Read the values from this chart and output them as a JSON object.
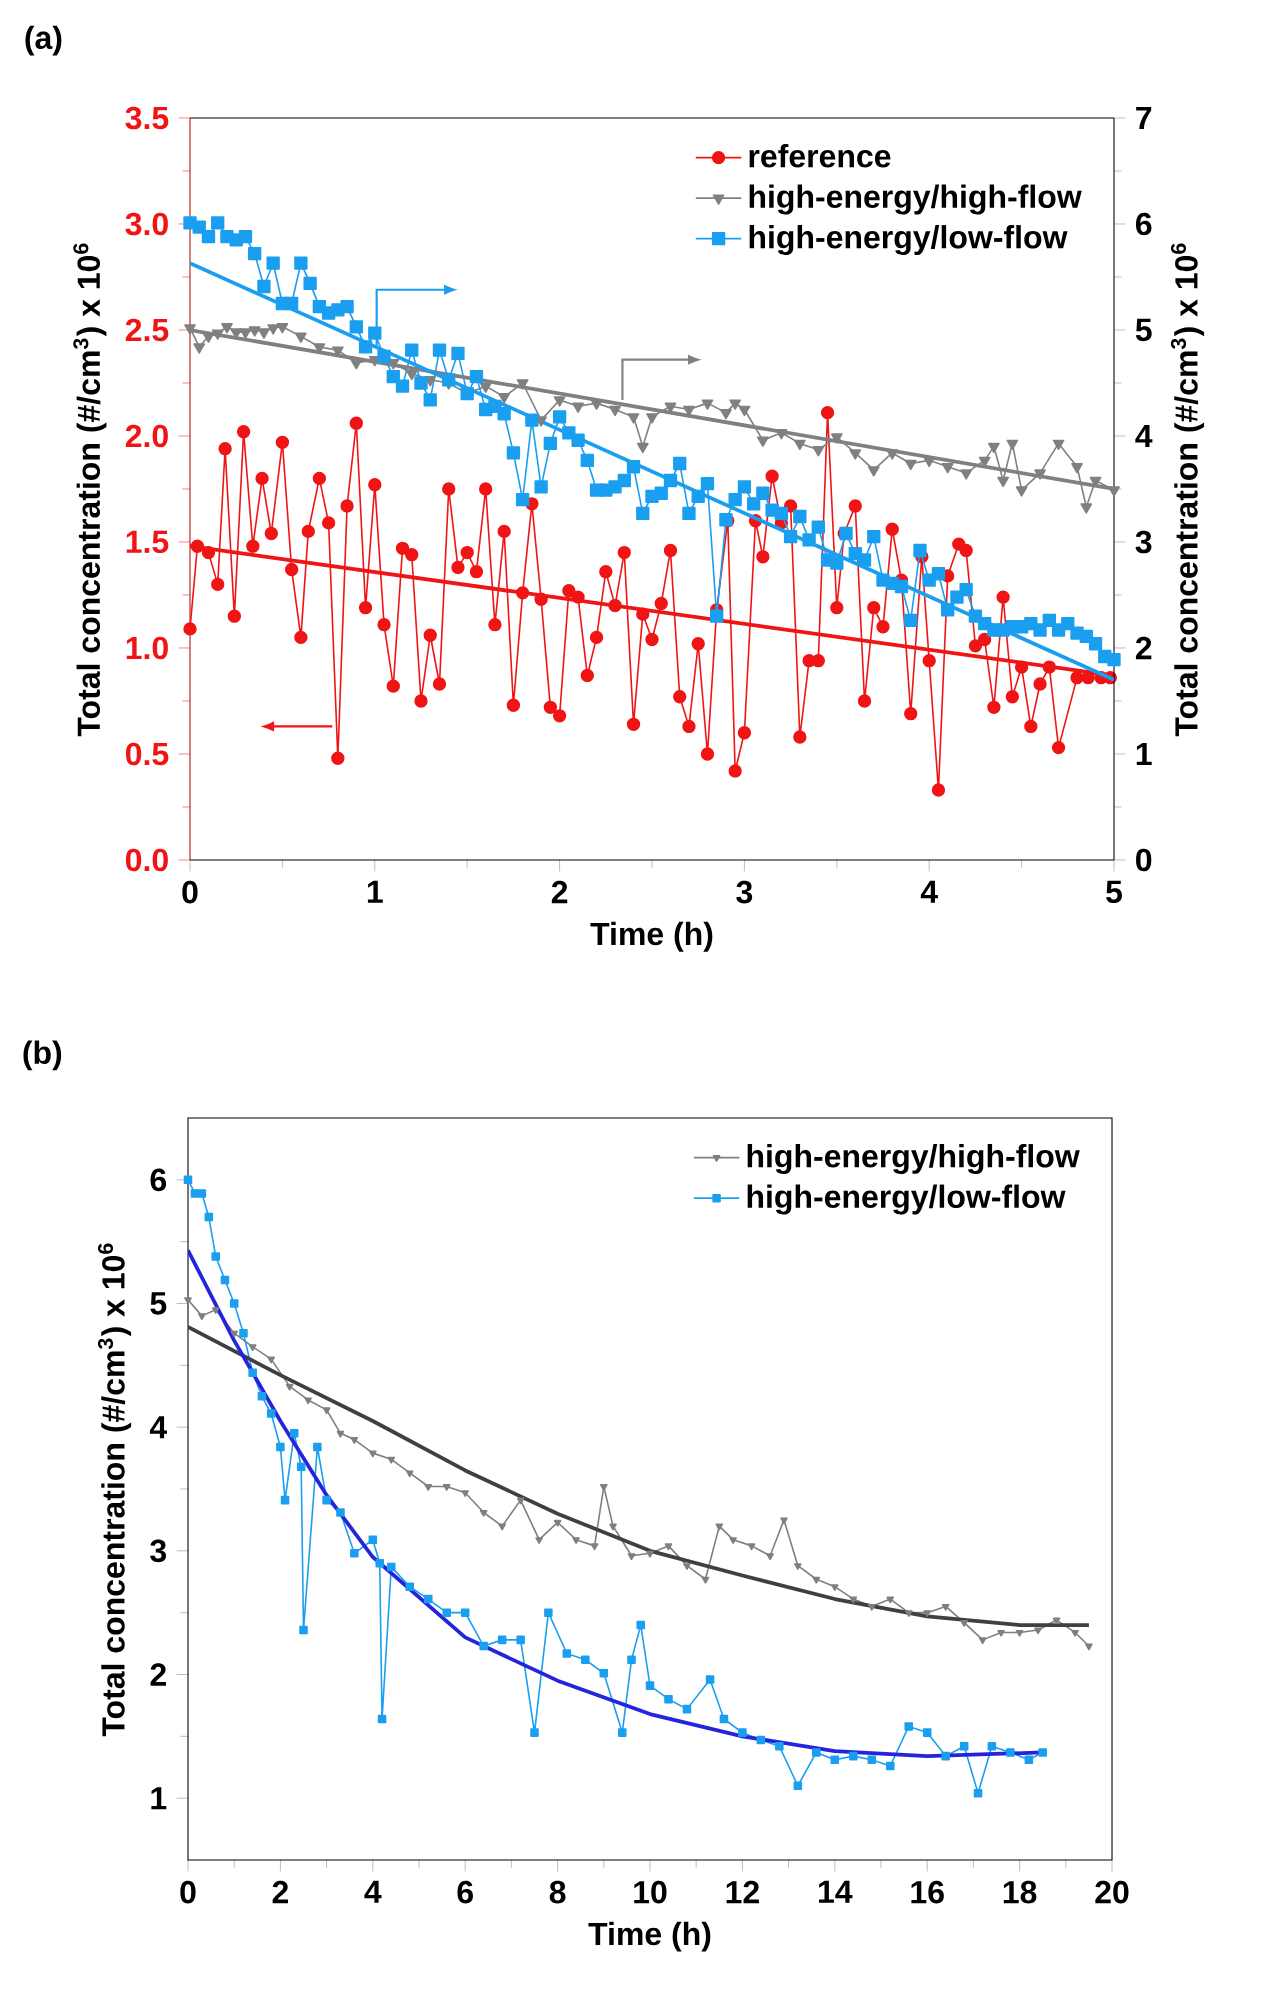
{
  "chart_data": [
    {
      "type": "line",
      "title": "(a)",
      "xlabel": "Time (h)",
      "ylabel": "Total concentration (#/cm$^{3}$) x 10$^{6}$",
      "y2label": "Total concentration (#/cm$^{3}$) x 10$^{6}$",
      "xlim": [
        0,
        5
      ],
      "xticks": [
        0,
        1,
        2,
        3,
        4,
        5
      ],
      "ylim": [
        0,
        3.5
      ],
      "yticks": [
        {
          "value": 0,
          "label": "0.0"
        },
        0.5,
        {
          "value": 1,
          "label": "1.0"
        },
        1.5,
        {
          "value": 2,
          "label": "2.0"
        },
        2.5,
        {
          "value": 3,
          "label": "3.0"
        },
        3.5
      ],
      "y2lim": [
        0,
        7
      ],
      "y2ticks": [
        0,
        1,
        2,
        3,
        4,
        5,
        6,
        7
      ],
      "legend": "top right",
      "series": [
        {
          "name": "reference",
          "color": "#f01414",
          "marker": "circle",
          "x": [
            0,
            0.04,
            0.1,
            0.15,
            0.19,
            0.24,
            0.29,
            0.34,
            0.39,
            0.44,
            0.5,
            0.55,
            0.6,
            0.64,
            0.7,
            0.75,
            0.8,
            0.85,
            0.9,
            0.95,
            1.0,
            1.05,
            1.1,
            1.15,
            1.2,
            1.25,
            1.3,
            1.35,
            1.4,
            1.45,
            1.5,
            1.55,
            1.6,
            1.65,
            1.7,
            1.75,
            1.8,
            1.85,
            1.9,
            1.95,
            2.0,
            2.05,
            2.1,
            2.15,
            2.2,
            2.25,
            2.3,
            2.35,
            2.4,
            2.45,
            2.5,
            2.55,
            2.6,
            2.65,
            2.7,
            2.75,
            2.8,
            2.85,
            2.91,
            2.95,
            3.0,
            3.06,
            3.1,
            3.15,
            3.2,
            3.25,
            3.3,
            3.35,
            3.4,
            3.45,
            3.5,
            3.54,
            3.6,
            3.65,
            3.7,
            3.75,
            3.8,
            3.85,
            3.9,
            3.96,
            4.0,
            4.05,
            4.1,
            4.16,
            4.2,
            4.25,
            4.3,
            4.35,
            4.4,
            4.45,
            4.5,
            4.55,
            4.6,
            4.65,
            4.7,
            4.8,
            4.86,
            4.93,
            4.98
          ],
          "values": [
            1.09,
            1.48,
            1.45,
            1.3,
            1.94,
            1.15,
            2.02,
            1.48,
            1.8,
            1.54,
            1.97,
            1.37,
            1.05,
            1.55,
            1.8,
            1.59,
            0.48,
            1.67,
            2.06,
            1.19,
            1.77,
            1.11,
            0.82,
            1.47,
            1.44,
            0.75,
            1.06,
            0.83,
            1.75,
            1.38,
            1.45,
            1.36,
            1.75,
            1.11,
            1.55,
            0.73,
            1.26,
            1.68,
            1.23,
            0.72,
            0.68,
            1.27,
            1.24,
            0.87,
            1.05,
            1.36,
            1.2,
            1.45,
            0.64,
            1.16,
            1.04,
            1.21,
            1.46,
            0.77,
            0.63,
            1.02,
            0.5,
            1.18,
            1.6,
            0.42,
            0.6,
            1.6,
            1.43,
            1.81,
            1.59,
            1.67,
            0.58,
            0.94,
            0.94,
            2.11,
            1.19,
            1.54,
            1.67,
            0.75,
            1.19,
            1.1,
            1.56,
            1.32,
            0.69,
            1.43,
            0.94,
            0.33,
            1.34,
            1.49,
            1.46,
            1.01,
            1.04,
            0.72,
            1.24,
            0.77,
            0.91,
            0.63,
            0.83,
            0.91,
            0.53,
            0.86,
            0.86,
            0.86,
            0.86
          ]
        },
        {
          "name": "high-energy/high-flow",
          "color": "#808080",
          "marker": "triangle",
          "axis": "y2",
          "x": [
            0,
            0.05,
            0.1,
            0.15,
            0.2,
            0.25,
            0.3,
            0.35,
            0.4,
            0.45,
            0.5,
            0.6,
            0.7,
            0.8,
            0.9,
            1.0,
            1.1,
            1.2,
            1.3,
            1.4,
            1.5,
            1.6,
            1.7,
            1.8,
            1.9,
            2.0,
            2.1,
            2.2,
            2.3,
            2.4,
            2.45,
            2.5,
            2.6,
            2.7,
            2.8,
            2.9,
            2.95,
            3.0,
            3.1,
            3.2,
            3.3,
            3.4,
            3.5,
            3.6,
            3.7,
            3.8,
            3.9,
            4.0,
            4.1,
            4.2,
            4.3,
            4.35,
            4.4,
            4.45,
            4.5,
            4.6,
            4.7,
            4.8,
            4.85,
            4.9,
            5.0
          ],
          "values": [
            5.02,
            4.84,
            4.94,
            4.97,
            5.03,
            4.98,
            4.98,
            5.0,
            4.98,
            5.02,
            5.03,
            4.94,
            4.84,
            4.81,
            4.69,
            4.72,
            4.69,
            4.59,
            4.53,
            4.5,
            4.4,
            4.47,
            4.37,
            4.5,
            4.15,
            4.34,
            4.28,
            4.31,
            4.25,
            4.18,
            3.9,
            4.18,
            4.28,
            4.25,
            4.31,
            4.22,
            4.31,
            4.25,
            3.96,
            4.03,
            3.93,
            3.87,
            3.99,
            3.84,
            3.68,
            3.84,
            3.74,
            3.77,
            3.71,
            3.65,
            3.77,
            3.9,
            3.58,
            3.93,
            3.49,
            3.65,
            3.93,
            3.71,
            3.33,
            3.58,
            3.49
          ]
        },
        {
          "name": "high-energy/low-flow",
          "color": "#1a9ff0",
          "marker": "square",
          "axis": "y2",
          "x": [
            0,
            0.05,
            0.1,
            0.15,
            0.2,
            0.25,
            0.3,
            0.35,
            0.4,
            0.45,
            0.5,
            0.55,
            0.6,
            0.65,
            0.7,
            0.75,
            0.8,
            0.85,
            0.9,
            0.95,
            1.0,
            1.05,
            1.1,
            1.15,
            1.2,
            1.25,
            1.3,
            1.35,
            1.4,
            1.45,
            1.5,
            1.55,
            1.6,
            1.65,
            1.7,
            1.75,
            1.8,
            1.85,
            1.9,
            1.95,
            2.0,
            2.05,
            2.1,
            2.15,
            2.2,
            2.25,
            2.3,
            2.35,
            2.4,
            2.45,
            2.5,
            2.55,
            2.6,
            2.65,
            2.7,
            2.75,
            2.8,
            2.85,
            2.9,
            2.95,
            3.0,
            3.05,
            3.1,
            3.15,
            3.2,
            3.25,
            3.3,
            3.35,
            3.4,
            3.45,
            3.5,
            3.55,
            3.6,
            3.65,
            3.7,
            3.75,
            3.8,
            3.85,
            3.9,
            3.95,
            4.0,
            4.05,
            4.1,
            4.15,
            4.2,
            4.25,
            4.3,
            4.35,
            4.4,
            4.45,
            4.5,
            4.55,
            4.6,
            4.65,
            4.7,
            4.75,
            4.8,
            4.85,
            4.9,
            4.95,
            5.0
          ],
          "values": [
            6.01,
            5.97,
            5.88,
            6.01,
            5.88,
            5.85,
            5.88,
            5.72,
            5.41,
            5.63,
            5.25,
            5.25,
            5.63,
            5.44,
            5.22,
            5.16,
            5.19,
            5.22,
            5.03,
            4.84,
            4.97,
            4.75,
            4.56,
            4.47,
            4.81,
            4.5,
            4.34,
            4.81,
            4.53,
            4.78,
            4.4,
            4.56,
            4.25,
            4.28,
            4.21,
            3.84,
            3.4,
            4.15,
            3.52,
            3.93,
            4.18,
            4.03,
            3.96,
            3.77,
            3.49,
            3.49,
            3.52,
            3.58,
            3.71,
            3.27,
            3.43,
            3.46,
            3.58,
            3.74,
            3.27,
            3.43,
            3.55,
            2.3,
            3.21,
            3.4,
            3.52,
            3.36,
            3.46,
            3.3,
            3.27,
            3.05,
            3.24,
            3.02,
            3.14,
            2.83,
            2.8,
            3.08,
            2.89,
            2.83,
            3.05,
            2.64,
            2.61,
            2.58,
            2.26,
            2.92,
            2.64,
            2.7,
            2.36,
            2.48,
            2.55,
            2.3,
            2.23,
            2.17,
            2.17,
            2.2,
            2.2,
            2.23,
            2.17,
            2.26,
            2.17,
            2.23,
            2.14,
            2.11,
            2.04,
            1.92,
            1.89
          ]
        },
        {
          "color": "#f01414",
          "marker": "none",
          "x": [
            0,
            5
          ],
          "values": [
            1.48,
            0.87
          ]
        },
        {
          "color": "#808080",
          "marker": "none",
          "axis": "y2",
          "x": [
            0,
            5
          ],
          "values": [
            5.0,
            3.5
          ]
        },
        {
          "color": "#1a9ff0",
          "marker": "none",
          "axis": "y2",
          "x": [
            0,
            5
          ],
          "values": [
            5.63,
            1.7
          ]
        }
      ]
    },
    {
      "type": "line",
      "title": "(b)",
      "xlabel": "Time (h)",
      "ylabel": "Total concentration (#/cm$^{3}$) x 10$^{6}$",
      "xlim": [
        0,
        20
      ],
      "xticks": [
        0,
        2,
        4,
        6,
        8,
        10,
        12,
        14,
        16,
        18,
        20
      ],
      "ylim": [
        0.5,
        6.5
      ],
      "yticks": [
        1,
        2,
        3,
        4,
        5,
        6
      ],
      "legend": "top right",
      "series": [
        {
          "name": "high-energy/high-flow",
          "color": "#7f7f7f",
          "marker": "triangle",
          "x": [
            0,
            0.3,
            0.6,
            1.0,
            1.4,
            1.8,
            2.2,
            2.6,
            3.0,
            3.3,
            3.6,
            4.0,
            4.4,
            4.8,
            5.2,
            5.6,
            6.0,
            6.4,
            6.8,
            7.2,
            7.6,
            8.0,
            8.4,
            8.8,
            9.0,
            9.2,
            9.6,
            10.0,
            10.4,
            10.8,
            11.2,
            11.5,
            11.8,
            12.2,
            12.6,
            12.9,
            13.2,
            13.6,
            14.0,
            14.4,
            14.8,
            15.2,
            15.6,
            16.0,
            16.4,
            16.8,
            17.2,
            17.6,
            18.0,
            18.4,
            18.8,
            19.2,
            19.5
          ],
          "values": [
            5.03,
            4.9,
            4.95,
            4.76,
            4.65,
            4.55,
            4.33,
            4.22,
            4.14,
            3.95,
            3.9,
            3.79,
            3.74,
            3.63,
            3.52,
            3.52,
            3.47,
            3.31,
            3.2,
            3.41,
            3.09,
            3.23,
            3.09,
            3.04,
            3.52,
            3.2,
            2.96,
            2.98,
            3.04,
            2.88,
            2.77,
            3.2,
            3.09,
            3.04,
            2.96,
            3.25,
            2.88,
            2.77,
            2.71,
            2.61,
            2.55,
            2.61,
            2.5,
            2.5,
            2.55,
            2.42,
            2.28,
            2.34,
            2.34,
            2.36,
            2.44,
            2.34,
            2.23
          ]
        },
        {
          "name": "high-energy/low-flow",
          "color": "#1a9ff0",
          "marker": "square",
          "x": [
            0,
            0.15,
            0.3,
            0.45,
            0.6,
            0.8,
            1.0,
            1.2,
            1.4,
            1.6,
            1.8,
            2.0,
            2.1,
            2.3,
            2.45,
            2.5,
            2.8,
            3.0,
            3.3,
            3.6,
            4.0,
            4.15,
            4.2,
            4.4,
            4.8,
            5.2,
            5.6,
            6.0,
            6.4,
            6.8,
            7.2,
            7.5,
            7.8,
            8.2,
            8.6,
            9.0,
            9.4,
            9.6,
            9.8,
            10.0,
            10.4,
            10.8,
            11.3,
            11.6,
            12.0,
            12.4,
            12.8,
            13.2,
            13.6,
            14.0,
            14.4,
            14.8,
            15.2,
            15.6,
            16.0,
            16.4,
            16.8,
            17.1,
            17.4,
            17.8,
            18.2,
            18.5
          ],
          "values": [
            6.0,
            5.89,
            5.89,
            5.7,
            5.38,
            5.19,
            5.0,
            4.76,
            4.44,
            4.25,
            4.11,
            3.84,
            3.41,
            3.95,
            3.68,
            2.36,
            3.84,
            3.41,
            3.31,
            2.98,
            3.09,
            2.9,
            1.64,
            2.87,
            2.71,
            2.61,
            2.5,
            2.5,
            2.23,
            2.28,
            2.28,
            1.53,
            2.5,
            2.17,
            2.12,
            2.01,
            1.53,
            2.12,
            2.4,
            1.91,
            1.8,
            1.72,
            1.96,
            1.64,
            1.53,
            1.47,
            1.42,
            1.1,
            1.37,
            1.31,
            1.34,
            1.31,
            1.26,
            1.58,
            1.53,
            1.34,
            1.42,
            1.04,
            1.42,
            1.37,
            1.31,
            1.37
          ]
        },
        {
          "color": "#404040",
          "marker": "none",
          "x": [
            0,
            2,
            4,
            6,
            8,
            10,
            12,
            14,
            16,
            18,
            19.5
          ],
          "values": [
            4.81,
            4.42,
            4.05,
            3.65,
            3.3,
            3.0,
            2.8,
            2.61,
            2.47,
            2.4,
            2.4
          ]
        },
        {
          "color": "#2424dd",
          "marker": "none",
          "x": [
            0,
            1,
            2,
            3,
            4,
            6,
            8,
            10,
            12,
            14,
            16,
            18.5
          ],
          "values": [
            5.43,
            4.7,
            4.05,
            3.45,
            2.95,
            2.3,
            1.95,
            1.68,
            1.5,
            1.38,
            1.34,
            1.37
          ]
        }
      ]
    }
  ]
}
